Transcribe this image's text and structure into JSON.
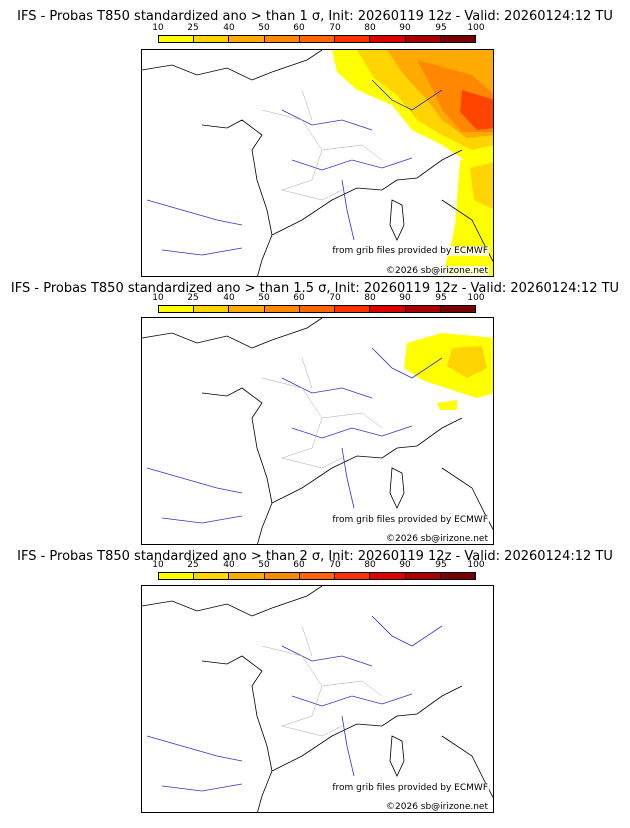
{
  "colorbar": {
    "ticks": [
      "10",
      "25",
      "40",
      "50",
      "60",
      "70",
      "80",
      "90",
      "95",
      "100"
    ],
    "colors": [
      "#ffff00",
      "#ffd400",
      "#ffaa00",
      "#ff8800",
      "#ff6600",
      "#ff3300",
      "#dd0000",
      "#aa0000",
      "#770000"
    ]
  },
  "panels": [
    {
      "title": "IFS - Probas T850  standardized ano > than 1 σ, Init: 20260119 12z - Valid: 20260124:12 TU",
      "credit_source": "from grib files provided by ECMWF",
      "credit_copyright": "©2026 sb@irizone.net"
    },
    {
      "title": "IFS - Probas T850  standardized ano > than 1.5 σ, Init: 20260119 12z - Valid: 20260124:12 TU",
      "credit_source": "from grib files provided by ECMWF",
      "credit_copyright": "©2026 sb@irizone.net"
    },
    {
      "title": "IFS - Probas T850  standardized ano > than 2 σ, Init: 20260119 12z - Valid: 20260124:12 TU",
      "credit_source": "from grib files provided by ECMWF",
      "credit_copyright": "©2026 sb@irizone.net"
    }
  ],
  "colors": {
    "coastline": "#000000",
    "rivers": "#3333cc",
    "regions": "#aaaaaa"
  }
}
